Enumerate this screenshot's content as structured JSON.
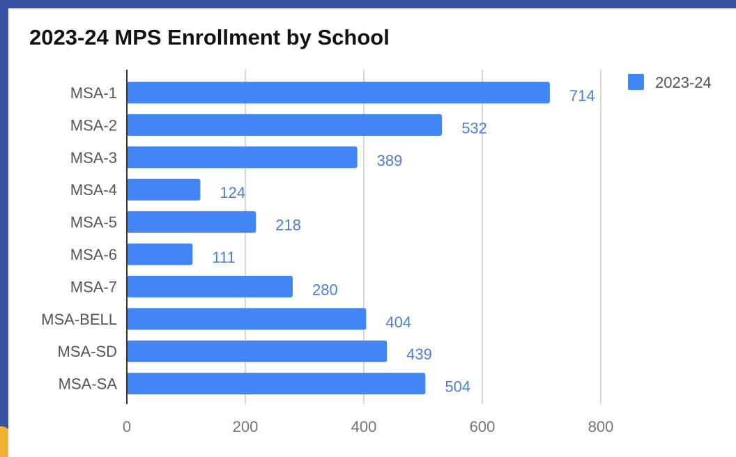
{
  "chart_data": {
    "type": "bar",
    "orientation": "horizontal",
    "title": "2023-24 MPS Enrollment by School",
    "xlabel": "",
    "ylabel": "",
    "categories": [
      "MSA-1",
      "MSA-2",
      "MSA-3",
      "MSA-4",
      "MSA-5",
      "MSA-6",
      "MSA-7",
      "MSA-BELL",
      "MSA-SD",
      "MSA-SA"
    ],
    "series": [
      {
        "name": "2023-24",
        "color": "#4285f4",
        "values": [
          714,
          532,
          389,
          124,
          218,
          111,
          280,
          404,
          439,
          504
        ]
      }
    ],
    "xlim": [
      0,
      800
    ],
    "xticks": [
      "0",
      "200",
      "400",
      "600",
      "800"
    ],
    "grid": true,
    "legend_position": "top-right",
    "data_labels": true
  }
}
